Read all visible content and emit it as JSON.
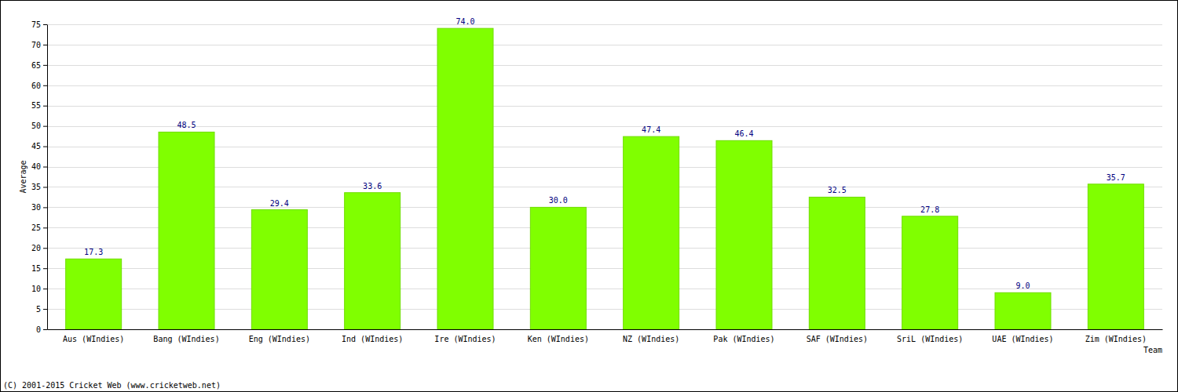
{
  "chart_data": {
    "type": "bar",
    "x_label": "Team",
    "y_label": "Average",
    "annotations": [
      "(C) 2001-2015 Cricket Web (www.cricketweb.net)"
    ],
    "categories": [
      "Aus (WIndies)",
      "Bang (WIndies)",
      "Eng (WIndies)",
      "Ind (WIndies)",
      "Ire (WIndies)",
      "Ken (WIndies)",
      "NZ (WIndies)",
      "Pak (WIndies)",
      "SAF (WIndies)",
      "SriL (WIndies)",
      "UAE (WIndies)",
      "Zim (WIndies)"
    ],
    "values": [
      17.3,
      48.5,
      29.4,
      33.6,
      74.0,
      30.0,
      47.4,
      46.4,
      32.5,
      27.8,
      9.0,
      35.7
    ],
    "value_labels": [
      "17.3",
      "48.5",
      "29.4",
      "33.6",
      "74.0",
      "30.0",
      "47.4",
      "46.4",
      "32.5",
      "27.8",
      "9.0",
      "35.7"
    ],
    "color": "#80ff00",
    "ylim": [
      0,
      75
    ],
    "yticks": [
      0,
      5,
      10,
      15,
      20,
      25,
      30,
      35,
      40,
      45,
      50,
      55,
      60,
      65,
      70,
      75
    ],
    "grid": true,
    "data_labels": true
  }
}
